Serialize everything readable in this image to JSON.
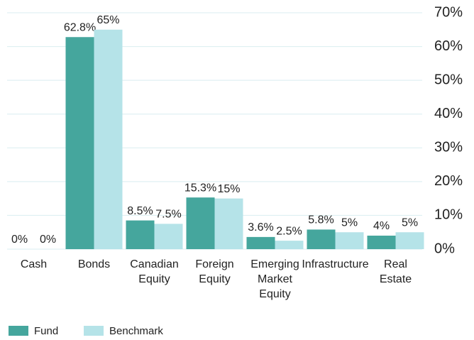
{
  "chart_data": {
    "type": "bar",
    "categories": [
      [
        "Cash"
      ],
      [
        "Bonds"
      ],
      [
        "Canadian",
        "Equity"
      ],
      [
        "Foreign",
        "Equity"
      ],
      [
        "Emerging",
        "Market",
        "Equity"
      ],
      [
        "Infrastructure"
      ],
      [
        "Real",
        "Estate"
      ]
    ],
    "series": [
      {
        "name": "Fund",
        "color": "#45a69d",
        "values": [
          0,
          62.8,
          8.5,
          15.3,
          3.6,
          5.8,
          4
        ],
        "value_labels": [
          "0%",
          "62.8%",
          "8.5%",
          "15.3%",
          "3.6%",
          "5.8%",
          "4%"
        ]
      },
      {
        "name": "Benchmark",
        "color": "#b5e3e8",
        "values": [
          0,
          65,
          7.5,
          15,
          2.5,
          5,
          5
        ],
        "value_labels": [
          "0%",
          "65%",
          "7.5%",
          "15%",
          "2.5%",
          "5%",
          "5%"
        ]
      }
    ],
    "ylim": [
      0,
      70
    ],
    "yticks": [
      {
        "value": 0,
        "label": "0%"
      },
      {
        "value": 10,
        "label": "10%"
      },
      {
        "value": 20,
        "label": "20%"
      },
      {
        "value": 30,
        "label": "30%"
      },
      {
        "value": 40,
        "label": "40%"
      },
      {
        "value": 50,
        "label": "50%"
      },
      {
        "value": 60,
        "label": "60%"
      },
      {
        "value": 70,
        "label": "70%"
      }
    ],
    "grid": true,
    "y_axis_side": "right",
    "legend": "bottom-left"
  }
}
